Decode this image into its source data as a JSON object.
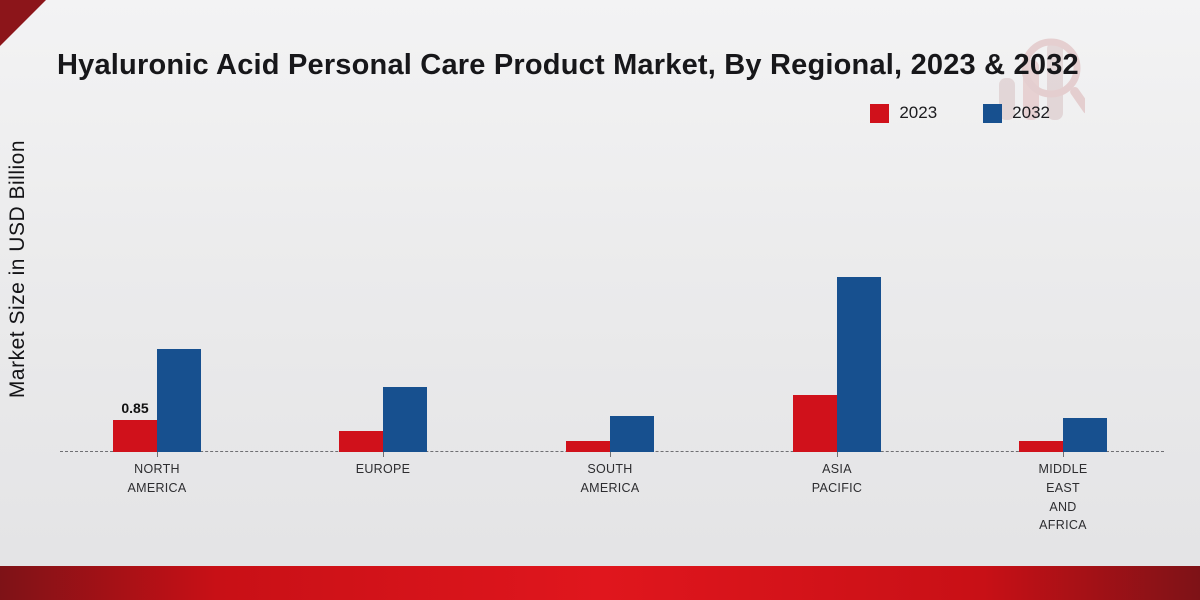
{
  "title": "Hyaluronic Acid Personal Care Product Market, By Regional, 2023 & 2032",
  "ylabel": "Market Size in USD Billion",
  "legend": [
    {
      "label": "2023",
      "color": "#d0111b"
    },
    {
      "label": "2032",
      "color": "#17508f"
    }
  ],
  "colors": {
    "series_2023": "#d0111b",
    "series_2032": "#17508f",
    "banner_red": "#d1121a",
    "corner_red": "#8c151a"
  },
  "chart_data": {
    "type": "bar",
    "title": "Hyaluronic Acid Personal Care Product Market, By Regional, 2023 & 2032",
    "xlabel": "",
    "ylabel": "Market Size in USD Billion",
    "categories": [
      "NORTH AMERICA",
      "EUROPE",
      "SOUTH AMERICA",
      "ASIA PACIFIC",
      "MIDDLE EAST AND AFRICA"
    ],
    "category_lines": [
      [
        "NORTH",
        "AMERICA"
      ],
      [
        "EUROPE"
      ],
      [
        "SOUTH",
        "AMERICA"
      ],
      [
        "ASIA",
        "PACIFIC"
      ],
      [
        "MIDDLE",
        "EAST",
        "AND",
        "AFRICA"
      ]
    ],
    "series": [
      {
        "name": "2023",
        "color": "#d0111b",
        "values": [
          0.85,
          0.55,
          0.3,
          1.5,
          0.28
        ]
      },
      {
        "name": "2032",
        "color": "#17508f",
        "values": [
          2.7,
          1.7,
          0.95,
          4.6,
          0.9
        ]
      }
    ],
    "annotations": [
      {
        "series": 0,
        "category": 0,
        "text": "0.85"
      }
    ],
    "ylim": [
      0,
      5
    ],
    "grid": false,
    "baseline": "dashed",
    "legend_position": "top-right"
  }
}
